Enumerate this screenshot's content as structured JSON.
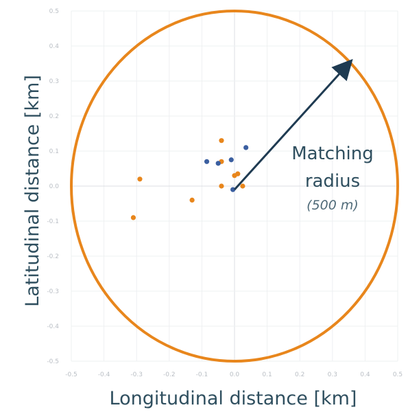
{
  "chart_data": {
    "type": "scatter",
    "xlabel": "Longitudinal distance [km]",
    "ylabel": "Latitudinal distance [km]",
    "xlim": [
      -0.5,
      0.5
    ],
    "ylim": [
      -0.5,
      0.5
    ],
    "x_ticks": [
      "-0.5",
      "-0.4",
      "-0.3",
      "-0.2",
      "-0.1",
      "0.0",
      "0.1",
      "0.2",
      "0.3",
      "0.4",
      "0.5"
    ],
    "y_ticks": [
      "-0.5",
      "-0.4",
      "-0.3",
      "-0.2",
      "-0.1",
      "0.0",
      "0.1",
      "0.2",
      "0.3",
      "0.4",
      "0.5"
    ],
    "grid": true,
    "legend": "none",
    "colors": {
      "orange": "#e8861c",
      "blue": "#3b5fa0",
      "navy": "#1f3b52"
    },
    "series": [
      {
        "color": "#e8861c",
        "points": [
          {
            "x": -0.31,
            "y": -0.09
          },
          {
            "x": -0.29,
            "y": 0.02
          },
          {
            "x": -0.13,
            "y": -0.04
          },
          {
            "x": -0.04,
            "y": 0.13
          },
          {
            "x": -0.04,
            "y": 0.07
          },
          {
            "x": -0.04,
            "y": 0.0
          },
          {
            "x": 0.0,
            "y": 0.03
          },
          {
            "x": 0.01,
            "y": 0.035
          },
          {
            "x": 0.025,
            "y": 0.0
          }
        ]
      },
      {
        "color": "#3b5fa0",
        "points": [
          {
            "x": -0.085,
            "y": 0.07
          },
          {
            "x": -0.05,
            "y": 0.065
          },
          {
            "x": -0.01,
            "y": 0.075
          },
          {
            "x": 0.035,
            "y": 0.11
          },
          {
            "x": -0.005,
            "y": -0.01
          }
        ]
      }
    ],
    "circle": {
      "cx": 0.0,
      "cy": 0.0,
      "r": 0.5,
      "color": "#e8861c"
    },
    "arrow": {
      "from": [
        0.0,
        -0.01
      ],
      "to": [
        0.35,
        0.35
      ],
      "color": "#1f3b52"
    },
    "annotation": {
      "line1": "Matching",
      "line2": "radius",
      "line3": "(500 m)"
    }
  }
}
